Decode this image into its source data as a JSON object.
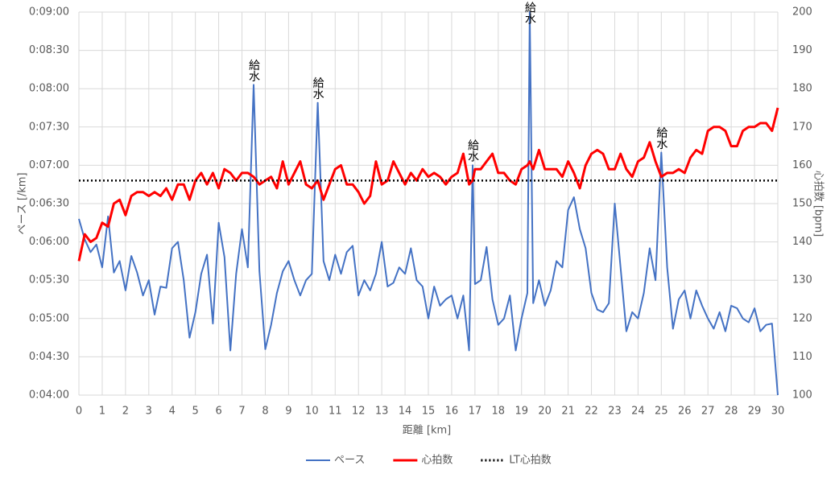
{
  "chart_data": {
    "type": "line",
    "x_label": "距離 [km]",
    "y_label": "ペース [/km]",
    "y2_label": "心拍数 [bpm]",
    "xlim": [
      0,
      30
    ],
    "xticks": [
      0,
      1,
      2,
      3,
      4,
      5,
      6,
      7,
      8,
      9,
      10,
      11,
      12,
      13,
      14,
      15,
      16,
      17,
      18,
      19,
      20,
      21,
      22,
      23,
      24,
      25,
      26,
      27,
      28,
      29,
      30
    ],
    "ylim": [
      240,
      540
    ],
    "yticks": [
      {
        "value": 240,
        "label": "0:04:00"
      },
      {
        "value": 270,
        "label": "0:04:30"
      },
      {
        "value": 300,
        "label": "0:05:00"
      },
      {
        "value": 330,
        "label": "0:05:30"
      },
      {
        "value": 360,
        "label": "0:06:00"
      },
      {
        "value": 390,
        "label": "0:06:30"
      },
      {
        "value": 420,
        "label": "0:07:00"
      },
      {
        "value": 450,
        "label": "0:07:30"
      },
      {
        "value": 480,
        "label": "0:08:00"
      },
      {
        "value": 510,
        "label": "0:08:30"
      },
      {
        "value": 540,
        "label": "0:09:00"
      }
    ],
    "y2lim": [
      100,
      200
    ],
    "y2ticks": [
      100,
      110,
      120,
      130,
      140,
      150,
      160,
      170,
      180,
      190,
      200
    ],
    "grid": true,
    "legend": "bottom",
    "x": [
      0,
      0.25,
      0.5,
      0.75,
      1,
      1.25,
      1.5,
      1.75,
      2,
      2.25,
      2.5,
      2.75,
      3,
      3.25,
      3.5,
      3.75,
      4,
      4.25,
      4.5,
      4.75,
      5,
      5.25,
      5.5,
      5.75,
      6,
      6.25,
      6.5,
      6.75,
      7,
      7.25,
      7.5,
      7.75,
      8,
      8.25,
      8.5,
      8.75,
      9,
      9.25,
      9.5,
      9.75,
      10,
      10.25,
      10.5,
      10.75,
      11,
      11.25,
      11.5,
      11.75,
      12,
      12.25,
      12.5,
      12.75,
      13,
      13.25,
      13.5,
      13.75,
      14,
      14.25,
      14.5,
      14.75,
      15,
      15.25,
      15.5,
      15.75,
      16,
      16.25,
      16.5,
      16.75,
      16.9,
      17,
      17.25,
      17.5,
      17.75,
      18,
      18.25,
      18.5,
      18.75,
      19,
      19.25,
      19.35,
      19.5,
      19.75,
      20,
      20.25,
      20.5,
      20.75,
      21,
      21.25,
      21.5,
      21.75,
      22,
      22.25,
      22.5,
      22.75,
      23,
      23.25,
      23.5,
      23.75,
      24,
      24.25,
      24.5,
      24.75,
      25,
      25.25,
      25.5,
      25.75,
      26,
      26.25,
      26.5,
      26.75,
      27,
      27.25,
      27.5,
      27.75,
      28,
      28.25,
      28.5,
      28.75,
      29,
      29.25,
      29.5,
      29.75,
      30
    ],
    "series": [
      {
        "name": "ペース",
        "color": "#4472c4",
        "axis": "y",
        "values": [
          378,
          362,
          352,
          358,
          340,
          380,
          336,
          345,
          322,
          349,
          336,
          318,
          330,
          303,
          325,
          324,
          355,
          360,
          330,
          285,
          305,
          335,
          350,
          296,
          375,
          348,
          275,
          335,
          370,
          340,
          483,
          337,
          276,
          295,
          320,
          337,
          345,
          330,
          318,
          330,
          335,
          469,
          345,
          330,
          350,
          335,
          352,
          357,
          318,
          330,
          322,
          335,
          360,
          325,
          328,
          340,
          335,
          355,
          330,
          325,
          300,
          325,
          310,
          315,
          318,
          300,
          318,
          275,
          420,
          327,
          330,
          356,
          315,
          295,
          300,
          318,
          275,
          300,
          320,
          540,
          312,
          330,
          310,
          322,
          345,
          340,
          385,
          395,
          370,
          355,
          320,
          307,
          305,
          312,
          390,
          340,
          290,
          305,
          300,
          320,
          355,
          330,
          430,
          340,
          292,
          315,
          322,
          300,
          322,
          310,
          300,
          292,
          305,
          290,
          310,
          308,
          300,
          297,
          308,
          290,
          295,
          296,
          240
        ]
      },
      {
        "name": "心拍数",
        "color": "#ff0000",
        "axis": "y2",
        "values": [
          135,
          142,
          140,
          141,
          145,
          144,
          150,
          151,
          147,
          152,
          153,
          153,
          152,
          153,
          152,
          154,
          151,
          155,
          155,
          151,
          156,
          158,
          155,
          158,
          154,
          159,
          158,
          156,
          158,
          158,
          157,
          155,
          156,
          157,
          154,
          161,
          155,
          158,
          161,
          155,
          154,
          156,
          151,
          155,
          159,
          160,
          155,
          155,
          153,
          150,
          152,
          161,
          155,
          156,
          161,
          158,
          155,
          158,
          156,
          159,
          157,
          158,
          157,
          155,
          157,
          158,
          163,
          155,
          156,
          159,
          159,
          161,
          163,
          158,
          158,
          156,
          155,
          159,
          160,
          161,
          159,
          164,
          159,
          159,
          159,
          157,
          161,
          158,
          154,
          160,
          163,
          164,
          163,
          159,
          159,
          163,
          159,
          157,
          161,
          162,
          166,
          161,
          157,
          158,
          158,
          159,
          158,
          162,
          164,
          163,
          169,
          170,
          170,
          169,
          165,
          165,
          169,
          170,
          170,
          171,
          171,
          169,
          175
        ]
      },
      {
        "name": "LT心拍数",
        "color": "#000000",
        "axis": "y2",
        "dash": true,
        "x": [
          0,
          30
        ],
        "values": [
          156,
          156
        ]
      }
    ],
    "annotations": [
      {
        "text": "給水",
        "x": 7.5
      },
      {
        "text": "給水",
        "x": 10.25
      },
      {
        "text": "給水",
        "x": 16.9
      },
      {
        "text": "給水",
        "x": 19.35
      },
      {
        "text": "給水",
        "x": 25
      }
    ]
  }
}
